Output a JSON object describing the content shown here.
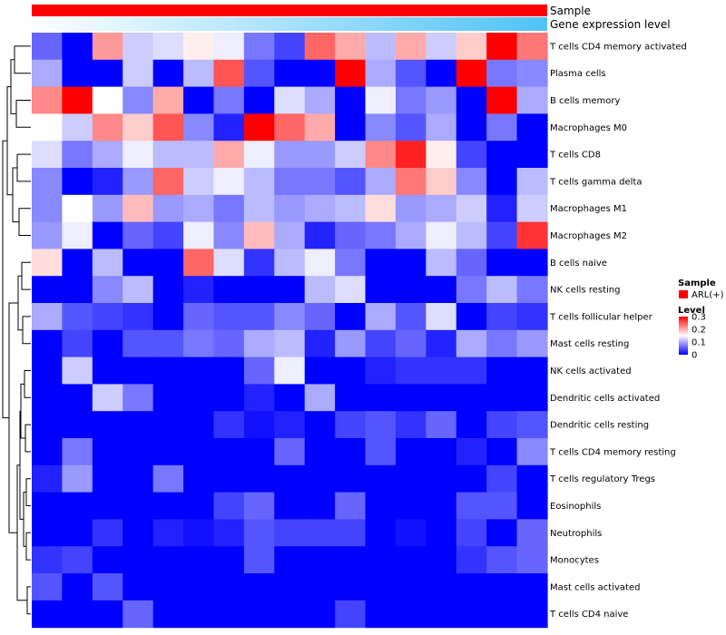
{
  "chart_data": {
    "type": "heatmap",
    "title": "",
    "annotation_tracks": [
      {
        "label": "Sample",
        "color": "#ff0000"
      },
      {
        "label": "Gene expression level",
        "gradient": [
          "#ffffff",
          "#4fc3f7"
        ]
      }
    ],
    "row_labels": [
      "T cells CD4 memory activated",
      "Plasma cells",
      "B cells memory",
      "Macrophages M0",
      "T cells CD8",
      "T cells gamma delta",
      "Macrophages M1",
      "Macrophages M2",
      "B cells naive",
      "NK cells resting",
      "T cells follicular helper",
      "Mast cells resting",
      "NK cells activated",
      "Dendritic cells activated",
      "Dendritic cells resting",
      "T cells CD4 memory resting",
      "T cells regulatory  Tregs",
      "Eosinophils",
      "Neutrophils",
      "Monocytes",
      "Mast cells activated",
      "T cells CD4 naive"
    ],
    "n_columns": 17,
    "values": [
      [
        0.06,
        0.0,
        0.21,
        0.12,
        0.13,
        0.16,
        0.14,
        0.07,
        0.04,
        0.24,
        0.2,
        0.11,
        0.2,
        0.12,
        0.18,
        0.3,
        0.23
      ],
      [
        0.1,
        0.0,
        0.0,
        0.12,
        0.0,
        0.11,
        0.25,
        0.05,
        0.0,
        0.0,
        0.3,
        0.1,
        0.05,
        0.0,
        0.3,
        0.07,
        0.08
      ],
      [
        0.22,
        0.3,
        0.15,
        0.08,
        0.2,
        0.0,
        0.07,
        0.0,
        0.13,
        0.1,
        0.0,
        0.14,
        0.07,
        0.09,
        0.0,
        0.3,
        0.1
      ],
      [
        0.15,
        0.12,
        0.22,
        0.18,
        0.25,
        0.08,
        0.02,
        0.3,
        0.24,
        0.2,
        0.0,
        0.08,
        0.05,
        0.1,
        0.0,
        0.07,
        0.0
      ],
      [
        0.13,
        0.07,
        0.1,
        0.14,
        0.11,
        0.11,
        0.2,
        0.14,
        0.09,
        0.09,
        0.12,
        0.22,
        0.28,
        0.16,
        0.04,
        0.0,
        0.0
      ],
      [
        0.08,
        0.0,
        0.02,
        0.09,
        0.24,
        0.12,
        0.14,
        0.11,
        0.07,
        0.07,
        0.05,
        0.1,
        0.23,
        0.18,
        0.08,
        0.0,
        0.11
      ],
      [
        0.08,
        0.15,
        0.09,
        0.19,
        0.09,
        0.1,
        0.07,
        0.11,
        0.09,
        0.1,
        0.11,
        0.17,
        0.09,
        0.1,
        0.12,
        0.02,
        0.12
      ],
      [
        0.09,
        0.14,
        0.0,
        0.06,
        0.04,
        0.14,
        0.08,
        0.19,
        0.1,
        0.02,
        0.06,
        0.07,
        0.1,
        0.14,
        0.11,
        0.04,
        0.27
      ],
      [
        0.17,
        0.0,
        0.11,
        0.0,
        0.0,
        0.24,
        0.13,
        0.03,
        0.11,
        0.14,
        0.07,
        0.0,
        0.0,
        0.11,
        0.06,
        0.0,
        0.0
      ],
      [
        0.0,
        0.0,
        0.08,
        0.11,
        0.0,
        0.02,
        0.0,
        0.0,
        0.0,
        0.11,
        0.13,
        0.0,
        0.0,
        0.0,
        0.07,
        0.11,
        0.07
      ],
      [
        0.1,
        0.05,
        0.04,
        0.03,
        0.0,
        0.06,
        0.05,
        0.05,
        0.08,
        0.06,
        0.0,
        0.1,
        0.05,
        0.13,
        0.0,
        0.04,
        0.03
      ],
      [
        0.0,
        0.04,
        0.0,
        0.05,
        0.05,
        0.07,
        0.06,
        0.1,
        0.11,
        0.02,
        0.09,
        0.04,
        0.06,
        0.02,
        0.1,
        0.07,
        0.09
      ],
      [
        0.0,
        0.12,
        0.0,
        0.0,
        0.0,
        0.0,
        0.0,
        0.06,
        0.14,
        0.0,
        0.0,
        0.02,
        0.03,
        0.03,
        0.03,
        0.0,
        0.0
      ],
      [
        0.0,
        0.0,
        0.12,
        0.07,
        0.0,
        0.0,
        0.0,
        0.02,
        0.0,
        0.1,
        0.0,
        0.0,
        0.0,
        0.0,
        0.0,
        0.0,
        0.0
      ],
      [
        0.0,
        0.0,
        0.0,
        0.0,
        0.0,
        0.0,
        0.03,
        0.01,
        0.02,
        0.0,
        0.04,
        0.05,
        0.03,
        0.06,
        0.0,
        0.04,
        0.05
      ],
      [
        0.0,
        0.07,
        0.0,
        0.0,
        0.0,
        0.0,
        0.0,
        0.0,
        0.06,
        0.0,
        0.0,
        0.05,
        0.0,
        0.0,
        0.02,
        0.0,
        0.08
      ],
      [
        0.02,
        0.09,
        0.0,
        0.0,
        0.07,
        0.0,
        0.0,
        0.0,
        0.0,
        0.0,
        0.0,
        0.0,
        0.0,
        0.0,
        0.0,
        0.04,
        0.0
      ],
      [
        0.0,
        0.0,
        0.0,
        0.0,
        0.0,
        0.0,
        0.04,
        0.06,
        0.0,
        0.0,
        0.06,
        0.0,
        0.0,
        0.0,
        0.05,
        0.05,
        0.0
      ],
      [
        0.0,
        0.0,
        0.03,
        0.0,
        0.02,
        0.01,
        0.02,
        0.05,
        0.04,
        0.04,
        0.04,
        0.0,
        0.01,
        0.0,
        0.04,
        0.0,
        0.06
      ],
      [
        0.03,
        0.04,
        0.0,
        0.0,
        0.0,
        0.0,
        0.0,
        0.05,
        0.0,
        0.0,
        0.0,
        0.0,
        0.0,
        0.0,
        0.03,
        0.05,
        0.06
      ],
      [
        0.05,
        0.0,
        0.05,
        0.0,
        0.0,
        0.0,
        0.0,
        0.0,
        0.0,
        0.0,
        0.0,
        0.0,
        0.0,
        0.0,
        0.0,
        0.0,
        0.0
      ],
      [
        0.0,
        0.0,
        0.0,
        0.06,
        0.0,
        0.0,
        0.0,
        0.0,
        0.0,
        0.0,
        0.04,
        0.0,
        0.0,
        0.0,
        0.0,
        0.0,
        0.0
      ]
    ],
    "colorscale": [
      [
        0,
        "#0000ff"
      ],
      [
        0.15,
        "#ffffff"
      ],
      [
        0.3,
        "#ff0000"
      ]
    ],
    "legend": {
      "sample_title": "Sample",
      "sample_entry": "ARL(+)",
      "sample_color": "#ff0000",
      "level_title": "Level",
      "level_ticks": [
        "0.3",
        "0.2",
        "0.1",
        "0"
      ],
      "level_range": [
        0,
        0.3
      ]
    },
    "dendrogram": "rows",
    "position_legend": "right"
  }
}
